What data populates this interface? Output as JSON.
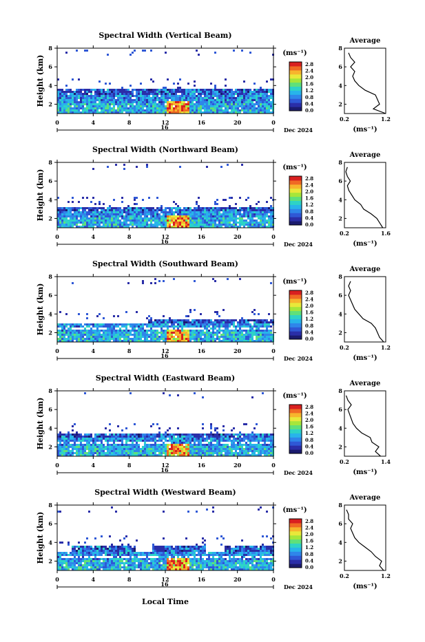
{
  "colorbar": {
    "unit": "(ms⁻¹)",
    "ticks": [
      "0.0",
      "0.4",
      "0.8",
      "1.2",
      "1.6",
      "2.0",
      "2.4",
      "2.8"
    ],
    "colors": [
      "#1b1b6e",
      "#2a2ea8",
      "#2f58d6",
      "#2f86ea",
      "#28b4ea",
      "#2ed3c6",
      "#5fe07a",
      "#a6e63a",
      "#e9e83a",
      "#f7b52d",
      "#f06a24",
      "#d92020"
    ]
  },
  "x_common": {
    "ticks": [
      "0",
      "4",
      "8",
      "12",
      "16",
      "20",
      "0"
    ],
    "day_label": "16",
    "month_label": "Dec 2024",
    "xlabel": "Local Time"
  },
  "profile": {
    "title": "Average",
    "unit_label": "(ms⁻¹)"
  },
  "chart_data": [
    {
      "type": "heatmap",
      "title": "Spectral Width (Vertical Beam)",
      "ylabel": "Height (km)",
      "yticks": [
        "2",
        "4",
        "6",
        "8"
      ],
      "ylim": [
        1,
        8
      ],
      "xlim": [
        0,
        24
      ],
      "layer_top_km": 3.8,
      "profile": {
        "type": "line",
        "xticks": [
          "0.2",
          "1.2"
        ],
        "xlim": [
          0.2,
          1.2
        ],
        "heights": [
          1,
          1.5,
          2,
          2.5,
          3,
          3.5,
          4,
          4.5,
          5,
          5.5,
          6,
          6.5,
          7,
          7.5
        ],
        "values": [
          1.2,
          0.9,
          1.05,
          1.0,
          0.95,
          0.7,
          0.55,
          0.45,
          0.4,
          0.45,
          0.35,
          0.45,
          0.35,
          0.3
        ]
      }
    },
    {
      "type": "heatmap",
      "title": "Spectral Width (Northward Beam)",
      "ylabel": "Height (km)",
      "yticks": [
        "2",
        "4",
        "6",
        "8"
      ],
      "ylim": [
        1,
        8
      ],
      "xlim": [
        0,
        24
      ],
      "layer_top_km": 3.4,
      "profile": {
        "type": "line",
        "xticks": [
          "0.2",
          "1.6"
        ],
        "xlim": [
          0.2,
          1.6
        ],
        "heights": [
          1,
          1.5,
          2,
          2.5,
          3,
          3.5,
          4,
          4.5,
          5,
          5.5,
          6,
          6.5,
          7,
          7.5
        ],
        "values": [
          1.5,
          1.4,
          1.3,
          1.1,
          0.85,
          0.75,
          0.55,
          0.45,
          0.35,
          0.3,
          0.4,
          0.3,
          0.25,
          0.3
        ]
      }
    },
    {
      "type": "heatmap",
      "title": "Spectral Width (Southward Beam)",
      "ylabel": "Height (km)",
      "yticks": [
        "2",
        "4",
        "6",
        "8"
      ],
      "ylim": [
        1,
        8
      ],
      "xlim": [
        0,
        24
      ],
      "layer_top_km": 3.6,
      "profile": {
        "type": "line",
        "xticks": [
          "0.2",
          "1.2"
        ],
        "xlim": [
          0.2,
          1.2
        ],
        "heights": [
          1,
          1.5,
          2,
          2.5,
          3,
          3.5,
          4,
          4.5,
          5,
          5.5,
          6,
          6.5,
          7,
          7.5
        ],
        "values": [
          1.15,
          1.05,
          1.0,
          0.95,
          0.85,
          0.65,
          0.55,
          0.45,
          0.4,
          0.35,
          0.3,
          0.35,
          0.3,
          0.35
        ]
      }
    },
    {
      "type": "heatmap",
      "title": "Spectral Width (Eastward Beam)",
      "ylabel": "Height (km)",
      "yticks": [
        "2",
        "4",
        "6",
        "8"
      ],
      "ylim": [
        1,
        8
      ],
      "xlim": [
        0,
        24
      ],
      "layer_top_km": 3.6,
      "profile": {
        "type": "line",
        "xticks": [
          "0.2",
          "1.4"
        ],
        "xlim": [
          0.2,
          1.4
        ],
        "heights": [
          1,
          1.5,
          2,
          2.5,
          3,
          3.5,
          4,
          4.5,
          5,
          5.5,
          6,
          6.5,
          7,
          7.5
        ],
        "values": [
          1.25,
          1.1,
          1.2,
          1.0,
          0.95,
          0.7,
          0.55,
          0.45,
          0.4,
          0.35,
          0.3,
          0.4,
          0.3,
          0.25
        ]
      }
    },
    {
      "type": "heatmap",
      "title": "Spectral Width (Westward Beam)",
      "ylabel": "Height (km)",
      "yticks": [
        "2",
        "4",
        "6",
        "8"
      ],
      "ylim": [
        1,
        8
      ],
      "xlim": [
        0,
        24
      ],
      "layer_top_km": 3.8,
      "profile": {
        "type": "line",
        "xticks": [
          "0.2",
          "1.2"
        ],
        "xlim": [
          0.2,
          1.2
        ],
        "heights": [
          1,
          1.5,
          2,
          2.5,
          3,
          3.5,
          4,
          4.5,
          5,
          5.5,
          6,
          6.5,
          7,
          7.5
        ],
        "values": [
          1.15,
          1.05,
          1.1,
          0.95,
          0.85,
          0.7,
          0.55,
          0.45,
          0.4,
          0.35,
          0.4,
          0.3,
          0.3,
          0.25
        ]
      }
    }
  ]
}
